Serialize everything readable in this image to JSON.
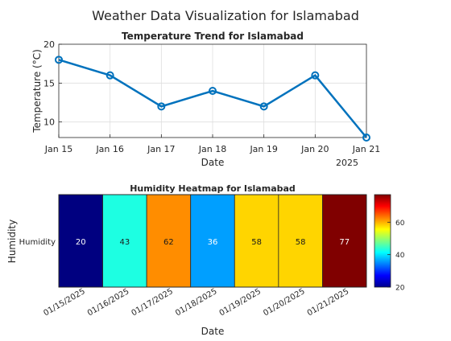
{
  "figure_title": "Weather Data Visualization for Islamabad",
  "chart_data": [
    {
      "type": "line",
      "title": "Temperature Trend for Islamabad",
      "xlabel": "Date",
      "ylabel": "Temperature (°C)",
      "x_ticks": [
        "Jan 15",
        "Jan 16",
        "Jan 17",
        "Jan 18",
        "Jan 19",
        "Jan 20",
        "Jan 21"
      ],
      "x_year_label": "2025",
      "x": [
        "2025-01-15",
        "2025-01-16",
        "2025-01-17",
        "2025-01-18",
        "2025-01-19",
        "2025-01-20",
        "2025-01-21"
      ],
      "values": [
        18,
        16,
        12,
        14,
        12,
        16,
        8
      ],
      "ylim": [
        8,
        20
      ],
      "y_ticks": [
        10,
        15,
        20
      ],
      "grid": true,
      "marker": "circle",
      "color": "#0072BD"
    },
    {
      "type": "heatmap",
      "title": "Humidity Heatmap for Islamabad",
      "xlabel": "Date",
      "ylabel": "Humidity",
      "row_labels": [
        "Humidity"
      ],
      "categories": [
        "01/15/2025",
        "01/16/2025",
        "01/17/2025",
        "01/18/2025",
        "01/19/2025",
        "01/20/2025",
        "01/21/2025"
      ],
      "values": [
        20,
        43,
        62,
        36,
        58,
        58,
        77
      ],
      "colormap": "jet",
      "clim": [
        20,
        77
      ],
      "colorbar_ticks": [
        20,
        40,
        60
      ]
    }
  ]
}
